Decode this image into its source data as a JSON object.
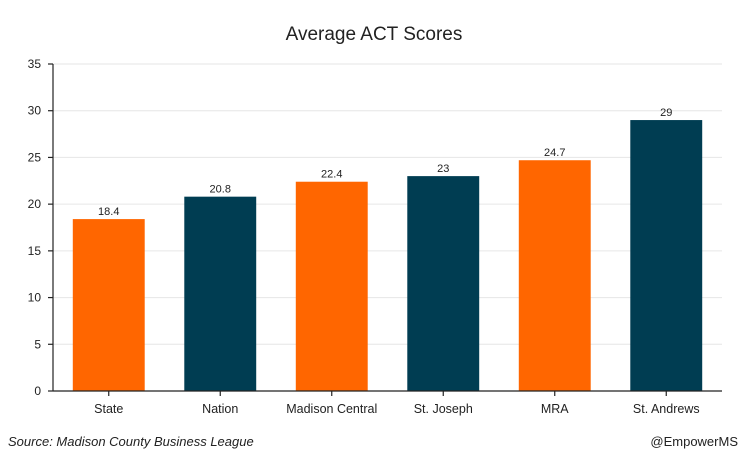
{
  "chart_data": {
    "type": "bar",
    "title": "Average ACT Scores",
    "categories": [
      "State",
      "Nation",
      "Madison Central",
      "St. Joseph",
      "MRA",
      "St. Andrews"
    ],
    "values": [
      18.4,
      20.8,
      22.4,
      23,
      24.7,
      29
    ],
    "value_labels": [
      "18.4",
      "20.8",
      "22.4",
      "23",
      "24.7",
      "29"
    ],
    "colors": [
      "#ff6600",
      "#003d52",
      "#ff6600",
      "#003d52",
      "#ff6600",
      "#003d52"
    ],
    "ylim": [
      0,
      35
    ],
    "yticks": [
      0,
      5,
      10,
      15,
      20,
      25,
      30,
      35
    ],
    "xlabel": "",
    "ylabel": "",
    "grid": true,
    "legend": "none"
  },
  "footer": {
    "source": "Source: Madison County Business League",
    "handle": "@EmpowerMS"
  }
}
